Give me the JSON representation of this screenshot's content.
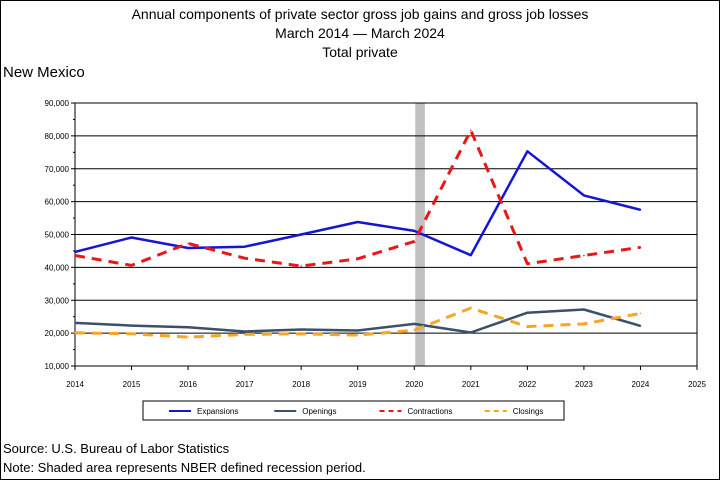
{
  "titles": {
    "line1": "Annual components of private sector gross job gains and gross job losses",
    "line2": "March 2014 — March 2024",
    "line3": "Total private"
  },
  "state": "New Mexico",
  "footer": {
    "source": "Source: U.S. Bureau of Labor Statistics",
    "note": "Note: Shaded area represents NBER defined recession period."
  },
  "chart_data": {
    "type": "line",
    "x": [
      2014,
      2015,
      2016,
      2017,
      2018,
      2019,
      2020,
      2021,
      2022,
      2023,
      2024
    ],
    "xlim": [
      2014,
      2025
    ],
    "x_ticks": [
      2014,
      2015,
      2016,
      2017,
      2018,
      2019,
      2020,
      2021,
      2022,
      2023,
      2024,
      2025
    ],
    "ylim": [
      10000,
      90000
    ],
    "y_ticks": [
      {
        "value": 10000,
        "label": "10,000"
      },
      {
        "value": 20000,
        "label": "20,000"
      },
      {
        "value": 30000,
        "label": "30,000"
      },
      {
        "value": 40000,
        "label": "40,000"
      },
      {
        "value": 50000,
        "label": "50,000"
      },
      {
        "value": 60000,
        "label": "60,000"
      },
      {
        "value": 70000,
        "label": "70,000"
      },
      {
        "value": 80000,
        "label": "80,000"
      },
      {
        "value": 90000,
        "label": "90,000"
      }
    ],
    "grid": true,
    "recession": {
      "start": 2020.0,
      "end": 2020.17,
      "color": "#c0c0c0"
    },
    "legend_position": "bottom",
    "series": [
      {
        "name": "Expansions",
        "color": "#1515d6",
        "dash": "solid",
        "values": [
          44700,
          49100,
          45900,
          46300,
          50000,
          53800,
          51100,
          43700,
          75300,
          61900,
          57500
        ]
      },
      {
        "name": "Openings",
        "color": "#3a506b",
        "dash": "solid",
        "values": [
          23100,
          22300,
          21800,
          20500,
          21100,
          20800,
          22800,
          20200,
          26200,
          27200,
          22200
        ]
      },
      {
        "name": "Contractions",
        "color": "#e81818",
        "dash": "dashed",
        "values": [
          43600,
          40600,
          47300,
          42800,
          40400,
          42600,
          47900,
          81700,
          41100,
          43600,
          46100
        ]
      },
      {
        "name": "Closings",
        "color": "#f5a623",
        "dash": "dashed",
        "values": [
          20100,
          19800,
          18800,
          19600,
          19800,
          19400,
          20900,
          27600,
          22000,
          22800,
          26000
        ]
      }
    ]
  }
}
